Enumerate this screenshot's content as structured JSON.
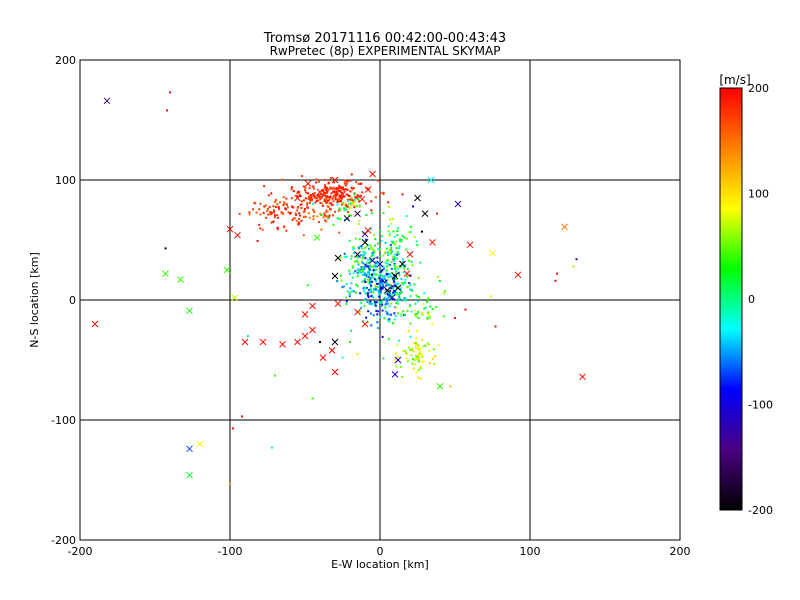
{
  "chart_data": {
    "type": "scatter",
    "title": "Tromsø 20171116 00:42:00-00:43:43",
    "subtitle": "RwPretec (8p) EXPERIMENTAL SKYMAP",
    "xlabel": "E-W location [km]",
    "ylabel": "N-S location [km]",
    "xlim": [
      -200,
      200
    ],
    "ylim": [
      -200,
      200
    ],
    "xticks": [
      "-200",
      "-100",
      "0",
      "100",
      "200"
    ],
    "yticks": [
      "-200",
      "-100",
      "0",
      "100",
      "200"
    ],
    "grid": true,
    "colorbar": {
      "label": "[m/s]",
      "range": [
        -200,
        200
      ],
      "ticks": [
        "200",
        "100",
        "0",
        "-100",
        "-200"
      ],
      "colors": [
        "#000000",
        "#4b0082",
        "#0000ff",
        "#00ffff",
        "#00ff00",
        "#ffff00",
        "#ff8000",
        "#ff0000"
      ]
    },
    "crosses": [
      {
        "x": -182,
        "y": 166,
        "v": -150
      },
      {
        "x": -190,
        "y": -20,
        "v": 190
      },
      {
        "x": -143,
        "y": 22,
        "v": 40
      },
      {
        "x": -133,
        "y": 17,
        "v": 40
      },
      {
        "x": -127,
        "y": -9,
        "v": 30
      },
      {
        "x": -127,
        "y": -124,
        "v": -70
      },
      {
        "x": -127,
        "y": -146,
        "v": 20
      },
      {
        "x": -120,
        "y": -120,
        "v": 90
      },
      {
        "x": -102,
        "y": 25,
        "v": 40
      },
      {
        "x": -97,
        "y": 2,
        "v": 70
      },
      {
        "x": -95,
        "y": 54,
        "v": 195
      },
      {
        "x": -100,
        "y": 59,
        "v": 195
      },
      {
        "x": -90,
        "y": -35,
        "v": 195
      },
      {
        "x": -78,
        "y": -35,
        "v": 195
      },
      {
        "x": -65,
        "y": -37,
        "v": 195
      },
      {
        "x": -55,
        "y": -35,
        "v": 195
      },
      {
        "x": -50,
        "y": -30,
        "v": 195
      },
      {
        "x": -45,
        "y": -25,
        "v": 195
      },
      {
        "x": -45,
        "y": -5,
        "v": 195
      },
      {
        "x": -50,
        "y": -12,
        "v": 195
      },
      {
        "x": -30,
        "y": -60,
        "v": 195
      },
      {
        "x": -38,
        "y": -48,
        "v": 195
      },
      {
        "x": -32,
        "y": -42,
        "v": 195
      },
      {
        "x": -28,
        "y": -3,
        "v": 190
      },
      {
        "x": -15,
        "y": -10,
        "v": 190
      },
      {
        "x": -10,
        "y": -20,
        "v": 190
      },
      {
        "x": -30,
        "y": 20,
        "v": -200
      },
      {
        "x": -28,
        "y": 35,
        "v": -200
      },
      {
        "x": -15,
        "y": 38,
        "v": -190
      },
      {
        "x": -10,
        "y": 48,
        "v": -200
      },
      {
        "x": -22,
        "y": 68,
        "v": -180
      },
      {
        "x": -15,
        "y": 72,
        "v": -170
      },
      {
        "x": -42,
        "y": 52,
        "v": 40
      },
      {
        "x": -18,
        "y": 80,
        "v": 90
      },
      {
        "x": -10,
        "y": 55,
        "v": -130
      },
      {
        "x": -5,
        "y": 33,
        "v": -110
      },
      {
        "x": 0,
        "y": 30,
        "v": -110
      },
      {
        "x": 10,
        "y": 20,
        "v": -200
      },
      {
        "x": 5,
        "y": 8,
        "v": -200
      },
      {
        "x": 12,
        "y": 10,
        "v": -200
      },
      {
        "x": 8,
        "y": 2,
        "v": -110
      },
      {
        "x": 15,
        "y": 30,
        "v": -200
      },
      {
        "x": 18,
        "y": 22,
        "v": 190
      },
      {
        "x": 12,
        "y": -50,
        "v": -110
      },
      {
        "x": 10,
        "y": -62,
        "v": -120
      },
      {
        "x": 20,
        "y": 38,
        "v": 190
      },
      {
        "x": 25,
        "y": 85,
        "v": -200
      },
      {
        "x": 30,
        "y": 72,
        "v": -200
      },
      {
        "x": 34,
        "y": 100,
        "v": -30
      },
      {
        "x": 52,
        "y": 80,
        "v": -120
      },
      {
        "x": 35,
        "y": 48,
        "v": 190
      },
      {
        "x": 60,
        "y": 46,
        "v": 195
      },
      {
        "x": 75,
        "y": 39,
        "v": 90
      },
      {
        "x": 40,
        "y": -72,
        "v": 40
      },
      {
        "x": 92,
        "y": 21,
        "v": 195
      },
      {
        "x": 123,
        "y": 61,
        "v": 150
      },
      {
        "x": 135,
        "y": -64,
        "v": 195
      },
      {
        "x": -30,
        "y": -35,
        "v": -200
      },
      {
        "x": -8,
        "y": 58,
        "v": 190
      },
      {
        "x": -5,
        "y": 105,
        "v": 195
      },
      {
        "x": -8,
        "y": 92,
        "v": 195
      },
      {
        "x": -40,
        "y": 90,
        "v": 195
      },
      {
        "x": -48,
        "y": 97,
        "v": 195
      },
      {
        "x": -55,
        "y": 85,
        "v": 195
      },
      {
        "x": -30,
        "y": 100,
        "v": 195
      },
      {
        "x": -25,
        "y": 88,
        "v": 195
      },
      {
        "x": -12,
        "y": 84,
        "v": 195
      }
    ],
    "dots": [
      {
        "x": -140,
        "y": 173,
        "v": 195
      },
      {
        "x": -142,
        "y": 158,
        "v": 195
      },
      {
        "x": -143,
        "y": 43,
        "v": -200
      },
      {
        "x": -98,
        "y": -107,
        "v": 195
      },
      {
        "x": -92,
        "y": -97,
        "v": 195
      },
      {
        "x": -100,
        "y": -153,
        "v": 130
      },
      {
        "x": -72,
        "y": -123,
        "v": -20
      },
      {
        "x": -88,
        "y": -30,
        "v": -10
      },
      {
        "x": -70,
        "y": -63,
        "v": 40
      },
      {
        "x": -45,
        "y": -82,
        "v": 40
      },
      {
        "x": -40,
        "y": -35,
        "v": -200
      },
      {
        "x": -25,
        "y": -48,
        "v": -30
      },
      {
        "x": -20,
        "y": -35,
        "v": 40
      },
      {
        "x": -15,
        "y": -45,
        "v": 100
      },
      {
        "x": 15,
        "y": 88,
        "v": 195
      },
      {
        "x": 38,
        "y": 72,
        "v": 190
      },
      {
        "x": 28,
        "y": 57,
        "v": -200
      },
      {
        "x": 22,
        "y": 78,
        "v": -110
      },
      {
        "x": 74,
        "y": 3,
        "v": 100
      },
      {
        "x": 77,
        "y": -22,
        "v": 195
      },
      {
        "x": 57,
        "y": -8,
        "v": 195
      },
      {
        "x": 50,
        "y": -15,
        "v": 190
      },
      {
        "x": 47,
        "y": -72,
        "v": 120
      },
      {
        "x": 118,
        "y": 22,
        "v": 195
      },
      {
        "x": 117,
        "y": 16,
        "v": 195
      },
      {
        "x": 129,
        "y": 28,
        "v": 60
      },
      {
        "x": 131,
        "y": 34,
        "v": -140
      }
    ],
    "clusters": [
      {
        "cx": -32,
        "cy": 88,
        "sx": 13,
        "sy": 6,
        "n": 230,
        "vmin": 165,
        "vmax": 200
      },
      {
        "cx": -70,
        "cy": 72,
        "sx": 11,
        "sy": 8,
        "n": 90,
        "vmin": 155,
        "vmax": 200
      },
      {
        "cx": -45,
        "cy": 72,
        "sx": 10,
        "sy": 6,
        "n": 40,
        "vmin": 140,
        "vmax": 200
      },
      {
        "cx": -22,
        "cy": 74,
        "sx": 8,
        "sy": 6,
        "n": 35,
        "vmin": -40,
        "vmax": 80
      },
      {
        "cx": -8,
        "cy": 25,
        "sx": 10,
        "sy": 15,
        "n": 260,
        "vmin": -70,
        "vmax": 60
      },
      {
        "cx": 3,
        "cy": 8,
        "sx": 8,
        "sy": 12,
        "n": 180,
        "vmin": -110,
        "vmax": -20
      },
      {
        "cx": 15,
        "cy": 10,
        "sx": 10,
        "sy": 20,
        "n": 90,
        "vmin": -30,
        "vmax": 60
      },
      {
        "cx": 10,
        "cy": 50,
        "sx": 7,
        "sy": 10,
        "n": 50,
        "vmin": -20,
        "vmax": 80
      },
      {
        "cx": 26,
        "cy": -45,
        "sx": 6,
        "sy": 8,
        "n": 70,
        "vmin": 40,
        "vmax": 110
      },
      {
        "cx": 28,
        "cy": -8,
        "sx": 8,
        "sy": 8,
        "n": 35,
        "vmin": 20,
        "vmax": 90
      }
    ]
  }
}
